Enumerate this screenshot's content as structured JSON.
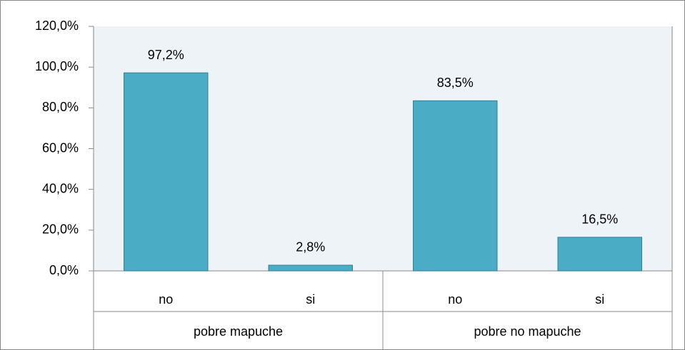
{
  "chart_data": {
    "type": "bar",
    "groups": [
      {
        "name": "pobre mapuche",
        "categories": [
          "no",
          "si"
        ],
        "values": [
          97.2,
          2.8
        ],
        "value_labels": [
          "97,2%",
          "2,8%"
        ]
      },
      {
        "name": "pobre no mapuche",
        "categories": [
          "no",
          "si"
        ],
        "values": [
          83.5,
          16.5
        ],
        "value_labels": [
          "83,5%",
          "16,5%"
        ]
      }
    ],
    "color": "#4bacc6",
    "ylim": [
      0,
      120
    ],
    "yticks": [
      {
        "value": 0,
        "label": "0,0%"
      },
      {
        "value": 20,
        "label": "20,0%"
      },
      {
        "value": 40,
        "label": "40,0%"
      },
      {
        "value": 60,
        "label": "60,0%"
      },
      {
        "value": 80,
        "label": "80,0%"
      },
      {
        "value": 100,
        "label": "100,0%"
      },
      {
        "value": 120,
        "label": "120,0%"
      }
    ]
  }
}
